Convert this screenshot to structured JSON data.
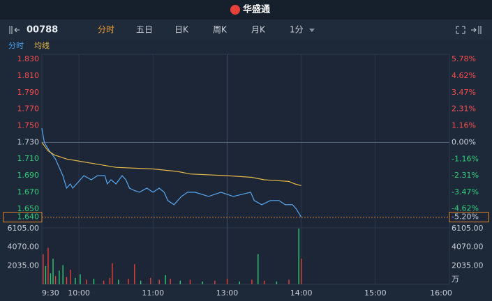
{
  "header": {
    "logo": "华盛通"
  },
  "toolbar": {
    "code": "00788",
    "tabs": [
      "分时",
      "五日",
      "日K",
      "周K",
      "月K",
      "1分"
    ]
  },
  "subtabs": [
    "分时",
    "均线"
  ],
  "chart_data": {
    "type": "line",
    "xlim": [
      0,
      330
    ],
    "xticks": [
      {
        "value": 0,
        "label": "9:30"
      },
      {
        "value": 30,
        "label": "10:00"
      },
      {
        "value": 90,
        "label": "11:00"
      },
      {
        "value": 150,
        "label": "13:00"
      },
      {
        "value": 210,
        "label": "14:00"
      },
      {
        "value": 270,
        "label": "15:00"
      },
      {
        "value": 330,
        "label": "16:00"
      }
    ],
    "ylim": [
      1.628,
      1.836
    ],
    "yticks": [
      {
        "value": 1.83,
        "label": "1.830"
      },
      {
        "value": 1.81,
        "label": "1.810"
      },
      {
        "value": 1.79,
        "label": "1.790"
      },
      {
        "value": 1.77,
        "label": "1.770"
      },
      {
        "value": 1.75,
        "label": "1.750"
      },
      {
        "value": 1.73,
        "label": "1.730"
      },
      {
        "value": 1.71,
        "label": "1.710"
      },
      {
        "value": 1.69,
        "label": "1.690"
      },
      {
        "value": 1.67,
        "label": "1.670"
      },
      {
        "value": 1.65,
        "label": "1.650"
      }
    ],
    "y2lim": [
      -5.9,
      6.13
    ],
    "y2ticks": [
      {
        "value": 5.78,
        "label": "5.78%"
      },
      {
        "value": 4.62,
        "label": "4.62%"
      },
      {
        "value": 3.47,
        "label": "3.47%"
      },
      {
        "value": 2.31,
        "label": "2.31%"
      },
      {
        "value": 1.16,
        "label": "1.16%"
      },
      {
        "value": 0,
        "label": "0.00%"
      },
      {
        "value": -1.16,
        "label": "-1.16%"
      },
      {
        "value": -2.31,
        "label": "-2.31%"
      },
      {
        "value": -3.47,
        "label": "-3.47%"
      },
      {
        "value": -4.62,
        "label": "-4.62%"
      }
    ],
    "last": {
      "value": 1.64,
      "label": "1.640"
    },
    "last_pct": {
      "value": -5.2,
      "label": "-5.20%"
    },
    "up_color": "#ff4d4f",
    "down_color": "#2fd07a",
    "flat_color": "#c8d0da",
    "last_color": "#e0892e",
    "series": [
      {
        "color": "#5aa8f0",
        "x": [
          0,
          2,
          6,
          11,
          14,
          17,
          20,
          23,
          25,
          28,
          34,
          40,
          45,
          51,
          53,
          56,
          60,
          65,
          68,
          71,
          75,
          79,
          85,
          90,
          95,
          99,
          102,
          107,
          110,
          113,
          118,
          124,
          135,
          145,
          155,
          169,
          172,
          178,
          185,
          192,
          197,
          203,
          206,
          210
        ],
        "values": [
          1.747,
          1.73,
          1.72,
          1.71,
          1.7,
          1.69,
          1.675,
          1.68,
          1.675,
          1.68,
          1.69,
          1.685,
          1.69,
          1.69,
          1.68,
          1.685,
          1.68,
          1.69,
          1.685,
          1.675,
          1.672,
          1.67,
          1.675,
          1.67,
          1.675,
          1.67,
          1.66,
          1.655,
          1.66,
          1.665,
          1.67,
          1.67,
          1.665,
          1.67,
          1.665,
          1.67,
          1.66,
          1.655,
          1.66,
          1.66,
          1.655,
          1.655,
          1.65,
          1.64
        ]
      },
      {
        "color": "#e6b84a",
        "x": [
          0,
          5,
          10,
          20,
          40,
          60,
          90,
          110,
          120,
          150,
          170,
          180,
          200,
          205,
          210
        ],
        "values": [
          1.73,
          1.72,
          1.715,
          1.71,
          1.705,
          1.7,
          1.698,
          1.695,
          1.692,
          1.69,
          1.688,
          1.685,
          1.683,
          1.68,
          1.678
        ]
      }
    ],
    "volume": {
      "ylim": [
        0,
        6105
      ],
      "yticks": [
        {
          "value": 6105,
          "label": "6105.00"
        },
        {
          "value": 4070,
          "label": "4070.00"
        },
        {
          "value": 2035,
          "label": "2035.00"
        }
      ],
      "unit": "万",
      "x": [
        1,
        3,
        5,
        7,
        9,
        11,
        14,
        17,
        20,
        23,
        27,
        31,
        36,
        42,
        50,
        55,
        57,
        62,
        70,
        75,
        80,
        88,
        95,
        100,
        104,
        112,
        120,
        130,
        140,
        150,
        160,
        170,
        175,
        180,
        190,
        200,
        208,
        210
      ],
      "values": [
        3300,
        2000,
        4000,
        1200,
        2800,
        900,
        1500,
        2100,
        800,
        1600,
        700,
        1100,
        500,
        600,
        400,
        700,
        2300,
        500,
        600,
        2200,
        400,
        700,
        500,
        1000,
        600,
        400,
        500,
        300,
        400,
        600,
        300,
        500,
        3300,
        400,
        300,
        500,
        6105,
        2800
      ],
      "colors": [
        "#e8413a",
        "#2ecc71",
        "#e8413a",
        "#2ecc71",
        "#2ecc71",
        "#e8413a",
        "#2ecc71",
        "#2ecc71",
        "#e8413a",
        "#e8413a",
        "#2ecc71",
        "#2ecc71",
        "#e8413a",
        "#2ecc71",
        "#e8413a",
        "#e8413a",
        "#e8413a",
        "#2ecc71",
        "#e8413a",
        "#e8413a",
        "#2ecc71",
        "#e8413a",
        "#e8413a",
        "#2ecc71",
        "#e8413a",
        "#2ecc71",
        "#e8413a",
        "#2ecc71",
        "#e8413a",
        "#e8413a",
        "#2ecc71",
        "#e8413a",
        "#2ecc71",
        "#e8413a",
        "#2ecc71",
        "#e8413a",
        "#2ecc71",
        "#e8413a"
      ]
    }
  }
}
